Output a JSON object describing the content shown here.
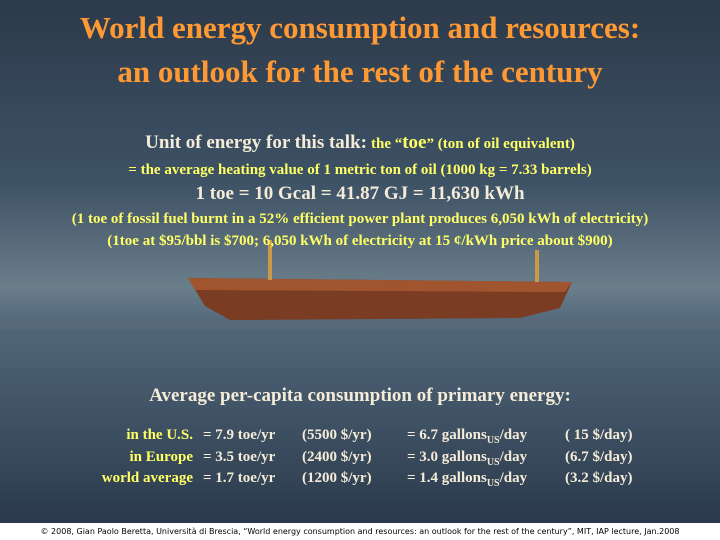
{
  "header": {
    "title_lines": [
      "World energy consumption and resources:",
      "an outlook for the rest of the century"
    ]
  },
  "unit": {
    "lead": "Unit of energy for this talk:",
    "toe_pre": "the “",
    "toe_word": "toe",
    "toe_post": "” (ton of oil equivalent)",
    "definition": "= the average heating value of 1 metric ton of oil (1000 kg = 7.33 barrels)",
    "equivalence": "1 toe = 10 Gcal = 41.87 GJ = 11,630 kWh",
    "notes": [
      "(1 toe of fossil fuel burnt in a 52% efficient power plant produces 6,050 kWh of electricity)",
      "(1toe at $95/bbl is $700; 6,050 kWh of electricity at 15 ¢/kWh price about $900)"
    ]
  },
  "consumption": {
    "heading": "Average per-capita consumption of primary energy:",
    "rows": [
      {
        "region": "in the U.S.",
        "toe": "= 7.9 toe/yr",
        "cost": "(5500 $/yr)",
        "gallons": "= 6.7 gallons",
        "sub": "US",
        "per_day": "/day",
        "daily_cost": "( 15 $/day)"
      },
      {
        "region": "in Europe",
        "toe": "= 3.5 toe/yr",
        "cost": "(2400 $/yr)",
        "gallons": "= 3.0 gallons",
        "sub": "US",
        "per_day": "/day",
        "daily_cost": "(6.7 $/day)"
      },
      {
        "region": "world average",
        "toe": "= 1.7 toe/yr",
        "cost": "(1200 $/yr)",
        "gallons": "= 1.4 gallons",
        "sub": "US",
        "per_day": "/day",
        "daily_cost": "(3.2 $/day)"
      }
    ]
  },
  "footer": "© 2008, Gian Paolo Beretta, Università di Brescia, “World energy consumption and resources: an outlook for the rest of the century”, MIT, IAP lecture, Jan.2008"
}
